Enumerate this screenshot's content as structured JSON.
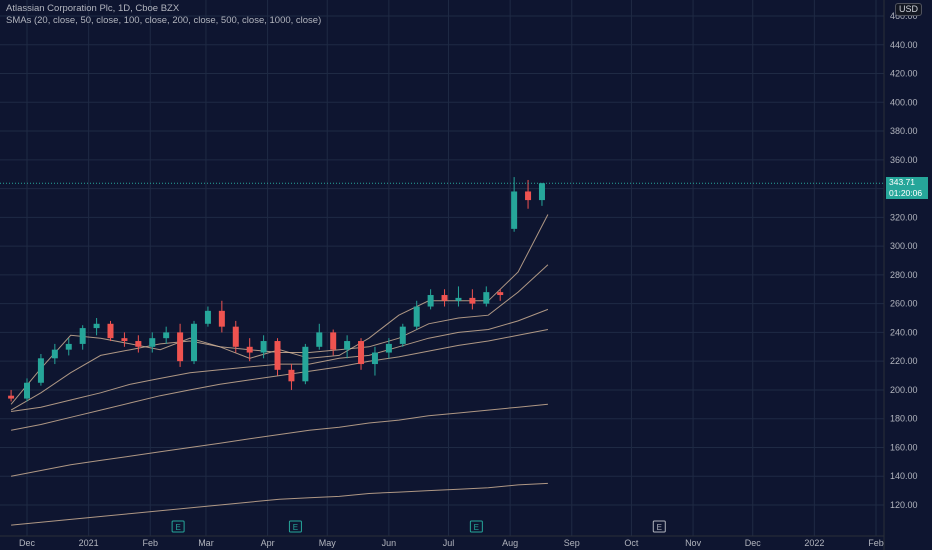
{
  "legend": {
    "title": "Atlassian Corporation Plc, 1D, Cboe BZX",
    "indicator": "SMAs (20, close, 50, close, 100, close, 200, close, 500, close, 1000, close)"
  },
  "currency": "USD",
  "last_price": {
    "value": "343.71",
    "countdown": "01:20:06"
  },
  "colors": {
    "background": "#0e1530",
    "grid": "#1f2a44",
    "up": "#26a69a",
    "down": "#ef5350",
    "sma": "#d7b89a"
  },
  "chart_data": {
    "type": "candlestick",
    "title": "Atlassian Corporation Plc, 1D, Cboe BZX",
    "y_axis": {
      "side": "right",
      "ylim": [
        110,
        470
      ],
      "ticks": [
        120,
        140,
        160,
        180,
        200,
        220,
        240,
        260,
        280,
        300,
        320,
        340,
        360,
        380,
        400,
        420,
        440,
        460
      ]
    },
    "x_axis": {
      "tick_labels": [
        "Dec",
        "2021",
        "Feb",
        "Mar",
        "Apr",
        "May",
        "Jun",
        "Jul",
        "Aug",
        "Sep",
        "Oct",
        "Nov",
        "Dec",
        "2022",
        "Feb"
      ]
    },
    "grid": true,
    "earnings_markers": [
      "2021-02",
      "2021-04",
      "2021-07",
      "2021-10"
    ],
    "candles_approx": [
      [
        "2020-11-23",
        196,
        200,
        192,
        194
      ],
      [
        "2020-12-01",
        194,
        208,
        192,
        205
      ],
      [
        "2020-12-08",
        205,
        225,
        203,
        222
      ],
      [
        "2020-12-15",
        222,
        232,
        218,
        228
      ],
      [
        "2020-12-22",
        228,
        236,
        224,
        232
      ],
      [
        "2020-12-29",
        232,
        245,
        228,
        243
      ],
      [
        "2021-01-05",
        243,
        250,
        238,
        246
      ],
      [
        "2021-01-12",
        246,
        248,
        234,
        236
      ],
      [
        "2021-01-19",
        236,
        240,
        230,
        234
      ],
      [
        "2021-01-26",
        234,
        238,
        226,
        230
      ],
      [
        "2021-02-02",
        230,
        240,
        226,
        236
      ],
      [
        "2021-02-09",
        236,
        244,
        232,
        240
      ],
      [
        "2021-02-16",
        240,
        246,
        216,
        220
      ],
      [
        "2021-02-23",
        220,
        248,
        218,
        246
      ],
      [
        "2021-03-02",
        246,
        258,
        244,
        255
      ],
      [
        "2021-03-09",
        255,
        262,
        240,
        244
      ],
      [
        "2021-03-16",
        244,
        248,
        226,
        230
      ],
      [
        "2021-03-23",
        230,
        236,
        220,
        226
      ],
      [
        "2021-03-30",
        226,
        238,
        222,
        234
      ],
      [
        "2021-04-06",
        234,
        236,
        210,
        214
      ],
      [
        "2021-04-13",
        214,
        218,
        200,
        206
      ],
      [
        "2021-04-20",
        206,
        232,
        204,
        230
      ],
      [
        "2021-04-27",
        230,
        246,
        228,
        240
      ],
      [
        "2021-05-04",
        240,
        242,
        224,
        228
      ],
      [
        "2021-05-11",
        228,
        238,
        222,
        234
      ],
      [
        "2021-05-18",
        234,
        236,
        214,
        218
      ],
      [
        "2021-05-25",
        218,
        230,
        210,
        226
      ],
      [
        "2021-06-01",
        226,
        236,
        222,
        232
      ],
      [
        "2021-06-08",
        232,
        246,
        230,
        244
      ],
      [
        "2021-06-15",
        244,
        262,
        242,
        258
      ],
      [
        "2021-06-22",
        258,
        270,
        256,
        266
      ],
      [
        "2021-06-29",
        266,
        270,
        258,
        262
      ],
      [
        "2021-07-06",
        262,
        272,
        258,
        264
      ],
      [
        "2021-07-13",
        264,
        270,
        256,
        260
      ],
      [
        "2021-07-20",
        260,
        272,
        258,
        268
      ],
      [
        "2021-07-27",
        268,
        270,
        262,
        266
      ],
      [
        "2021-08-03",
        312,
        348,
        310,
        338
      ],
      [
        "2021-08-10",
        338,
        346,
        326,
        332
      ],
      [
        "2021-08-17",
        332,
        344,
        328,
        343.71
      ]
    ],
    "series": [
      {
        "name": "SMA 20",
        "values_approx": [
          190,
          215,
          238,
          236,
          232,
          228,
          236,
          230,
          222,
          228,
          222,
          224,
          236,
          252,
          262,
          262,
          262,
          282,
          322
        ]
      },
      {
        "name": "SMA 50",
        "values_approx": [
          186,
          198,
          212,
          224,
          228,
          232,
          234,
          230,
          228,
          226,
          226,
          228,
          230,
          236,
          246,
          250,
          252,
          268,
          287
        ]
      },
      {
        "name": "SMA 100",
        "values_approx": [
          185,
          188,
          193,
          198,
          204,
          208,
          212,
          214,
          216,
          218,
          218,
          222,
          224,
          230,
          236,
          240,
          242,
          248,
          256
        ]
      },
      {
        "name": "SMA 200",
        "values_approx": [
          172,
          176,
          181,
          186,
          191,
          196,
          200,
          204,
          207,
          210,
          213,
          216,
          220,
          223,
          227,
          231,
          234,
          238,
          242
        ]
      },
      {
        "name": "SMA 500",
        "values_approx": [
          140,
          144,
          148,
          151,
          154,
          157,
          160,
          163,
          166,
          169,
          172,
          174,
          177,
          179,
          182,
          184,
          186,
          188,
          190
        ]
      },
      {
        "name": "SMA 1000",
        "values_approx": [
          106,
          108,
          110,
          112,
          114,
          116,
          118,
          120,
          122,
          124,
          125,
          126,
          128,
          129,
          130,
          131,
          132,
          134,
          135
        ]
      }
    ]
  }
}
